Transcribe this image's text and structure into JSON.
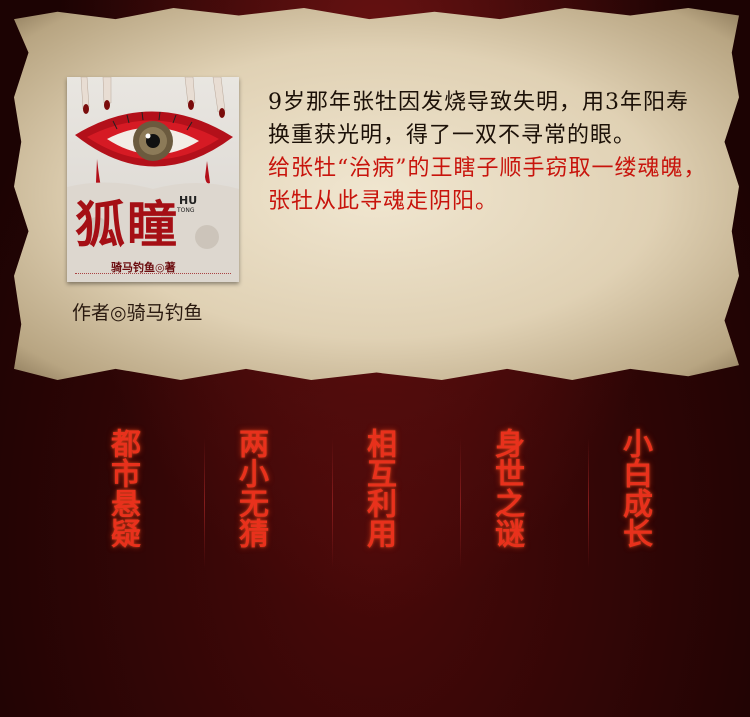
{
  "book": {
    "cover_title": "狐瞳",
    "cover_pinyin_hu": "HU",
    "cover_pinyin_tong": "TONG",
    "cover_author": "骑马钓鱼◎著",
    "author_caption": "作者◎骑马钓鱼"
  },
  "blurb": {
    "line1": "9岁那年张牡因发烧导致失明，用3年阳寿换重获光明，得了一双不寻常的眼。",
    "line2": "给张牡“治病”的王瞎子顺手窃取一缕魂魄，张牡从此寻魂走阴阳。"
  },
  "tags": [
    {
      "label": "都市悬疑"
    },
    {
      "label": "两小无猜"
    },
    {
      "label": "相互利用"
    },
    {
      "label": "身世之谜"
    },
    {
      "label": "小白成长"
    }
  ],
  "colors": {
    "accent_red": "#c8140c",
    "tag_red": "#e8311c",
    "parchment": "#e0d1b4"
  }
}
